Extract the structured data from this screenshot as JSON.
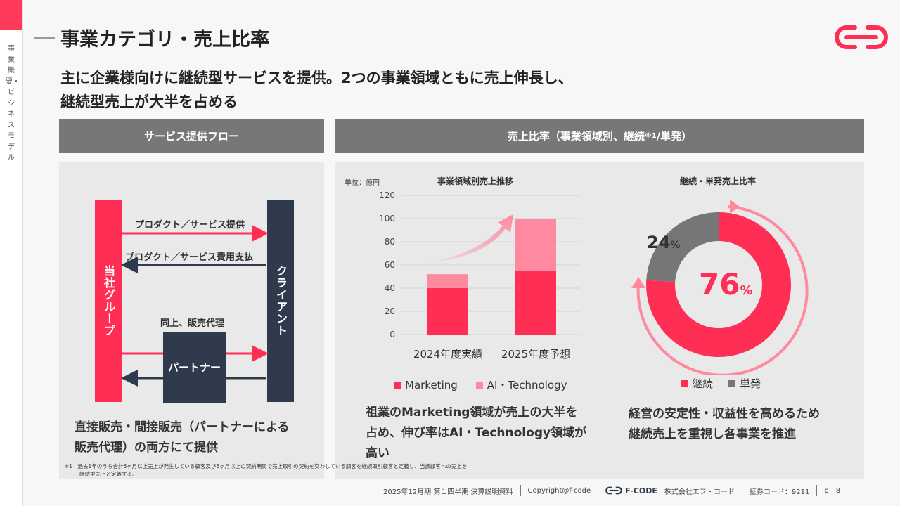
{
  "sidebar": {
    "vertical_label": "事業概要・ビジネスモデル"
  },
  "header": {
    "title": "事業カテゴリ・売上比率",
    "subtitle_line1": "主に企業様向けに継続型サービスを提供。2つの事業領域ともに売上伸長し、",
    "subtitle_line2": "継続型売上が大半を占める"
  },
  "logo": {
    "icon": "f-code-logo-icon"
  },
  "left_section": {
    "header": "サービス提供フロー",
    "company_label": "当社グループ",
    "client_label": "クライアント",
    "partner_label": "パートナー",
    "flow1": "プロダクト／サービス提供",
    "flow2": "プロダクト／サービス費用支払",
    "flow3": "同上、販売代理",
    "caption_line1": "直接販売・間接販売（パートナーによる",
    "caption_line2": "販売代理）の両方にて提供"
  },
  "right_section": {
    "header_main": "売上比率（事業領域別、継続",
    "header_note": "※1",
    "header_tail": "/単発）",
    "bar_title": "事業領域別売上推移",
    "unit": "単位：億円",
    "legend_marketing": "Marketing",
    "legend_ai": "AI・Technology",
    "donut_title": "継続・単発売上比率",
    "donut_big_value": "76",
    "donut_big_pct": "%",
    "donut_small_value": "24",
    "donut_small_pct": "%",
    "legend_recurring": "継続",
    "legend_single": "単発",
    "bar_caption_line1": "祖業のMarketing領域が売上の大半を",
    "bar_caption_line2": "占め、伸び率はAI・Technology領域が",
    "bar_caption_line3": "高い",
    "donut_caption_line1": "経営の安定性・収益性を高めるため",
    "donut_caption_line2": "継続売上を重視し各事業を推進"
  },
  "footnote": {
    "line1": "※1　過去1年のうち合計6ヶ月以上売上が発生している顧客及び6ヶ月以上の契約期間で売上取引の契約を交わしている顧客を継続取引顧客と定義し、当該顧客への売上を",
    "line2": "継続型売上と定義する。"
  },
  "footer": {
    "doc": "2025年12月期 第１四半期 決算説明資料",
    "copyright": "Copyright@f-code",
    "brand": "F-CODE",
    "company": "株式会社エフ・コード",
    "code": "証券コード：9211",
    "page_prefix": "p",
    "page": "8"
  },
  "colors": {
    "accent": "#ff2e55",
    "accent_light": "#ff8aa0",
    "navy": "#2f3a4d",
    "gray": "#767676"
  },
  "chart_data": [
    {
      "type": "bar",
      "title": "事業領域別売上推移",
      "categories": [
        "2024年度実績",
        "2025年度予想"
      ],
      "series": [
        {
          "name": "Marketing",
          "values": [
            40,
            55
          ]
        },
        {
          "name": "AI・Technology",
          "values": [
            12,
            45
          ]
        }
      ],
      "ylim": [
        0,
        120
      ],
      "yticks": [
        0,
        20,
        40,
        60,
        80,
        100,
        120
      ],
      "ylabel": "単位：億円",
      "stacked": true,
      "grid": true,
      "legend": "bottom"
    },
    {
      "type": "pie",
      "title": "継続・単発売上比率",
      "donut": true,
      "labels": [
        "継続",
        "単発"
      ],
      "values": [
        76,
        24
      ],
      "legend": "bottom"
    }
  ]
}
